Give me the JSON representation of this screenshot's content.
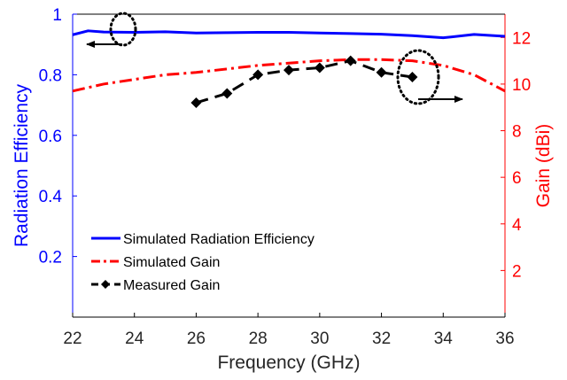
{
  "chart_data": {
    "type": "line",
    "xlabel": "Frequency (GHz)",
    "ylabel_left": "Radiation Efficiency",
    "ylabel_right": "Gain (dBi)",
    "xlim": [
      22,
      36
    ],
    "ylim_left": [
      0,
      1
    ],
    "ylim_right": [
      0,
      13
    ],
    "x_ticks": [
      "22",
      "24",
      "26",
      "28",
      "30",
      "32",
      "34",
      "36"
    ],
    "y_ticks_left": [
      "0.2",
      "0.4",
      "0.6",
      "0.8",
      "1"
    ],
    "y_ticks_right": [
      "2",
      "4",
      "6",
      "8",
      "10",
      "12"
    ],
    "grid": false,
    "legend_position": "bottom-left",
    "colors": {
      "left_axis": "#0000ff",
      "right_axis": "#ff0000",
      "efficiency": "#0000ff",
      "sim_gain": "#ff0000",
      "meas_gain": "#000000"
    },
    "series": [
      {
        "name": "Simulated Radiation Efficiency",
        "axis": "left",
        "style": "solid",
        "x": [
          22,
          22.5,
          23,
          24,
          25,
          26,
          27,
          28,
          29,
          30,
          31,
          32,
          33,
          34,
          35,
          36
        ],
        "y": [
          0.932,
          0.945,
          0.941,
          0.94,
          0.942,
          0.938,
          0.939,
          0.94,
          0.94,
          0.938,
          0.936,
          0.934,
          0.929,
          0.922,
          0.933,
          0.927
        ]
      },
      {
        "name": "Simulated Gain",
        "axis": "right",
        "style": "dash-dot",
        "x": [
          22,
          23,
          24,
          25,
          26,
          27,
          28,
          29,
          30,
          31,
          32,
          33,
          34,
          35,
          36
        ],
        "y": [
          9.7,
          10.0,
          10.2,
          10.4,
          10.5,
          10.65,
          10.8,
          10.9,
          11.0,
          11.05,
          11.05,
          11.0,
          10.8,
          10.4,
          9.7
        ]
      },
      {
        "name": "Measured Gain",
        "axis": "right",
        "style": "dashed-diamond",
        "x": [
          26,
          27,
          28,
          29,
          30,
          31,
          32,
          33
        ],
        "y": [
          9.2,
          9.6,
          10.4,
          10.6,
          10.7,
          11.0,
          10.5,
          10.3
        ]
      }
    ]
  }
}
